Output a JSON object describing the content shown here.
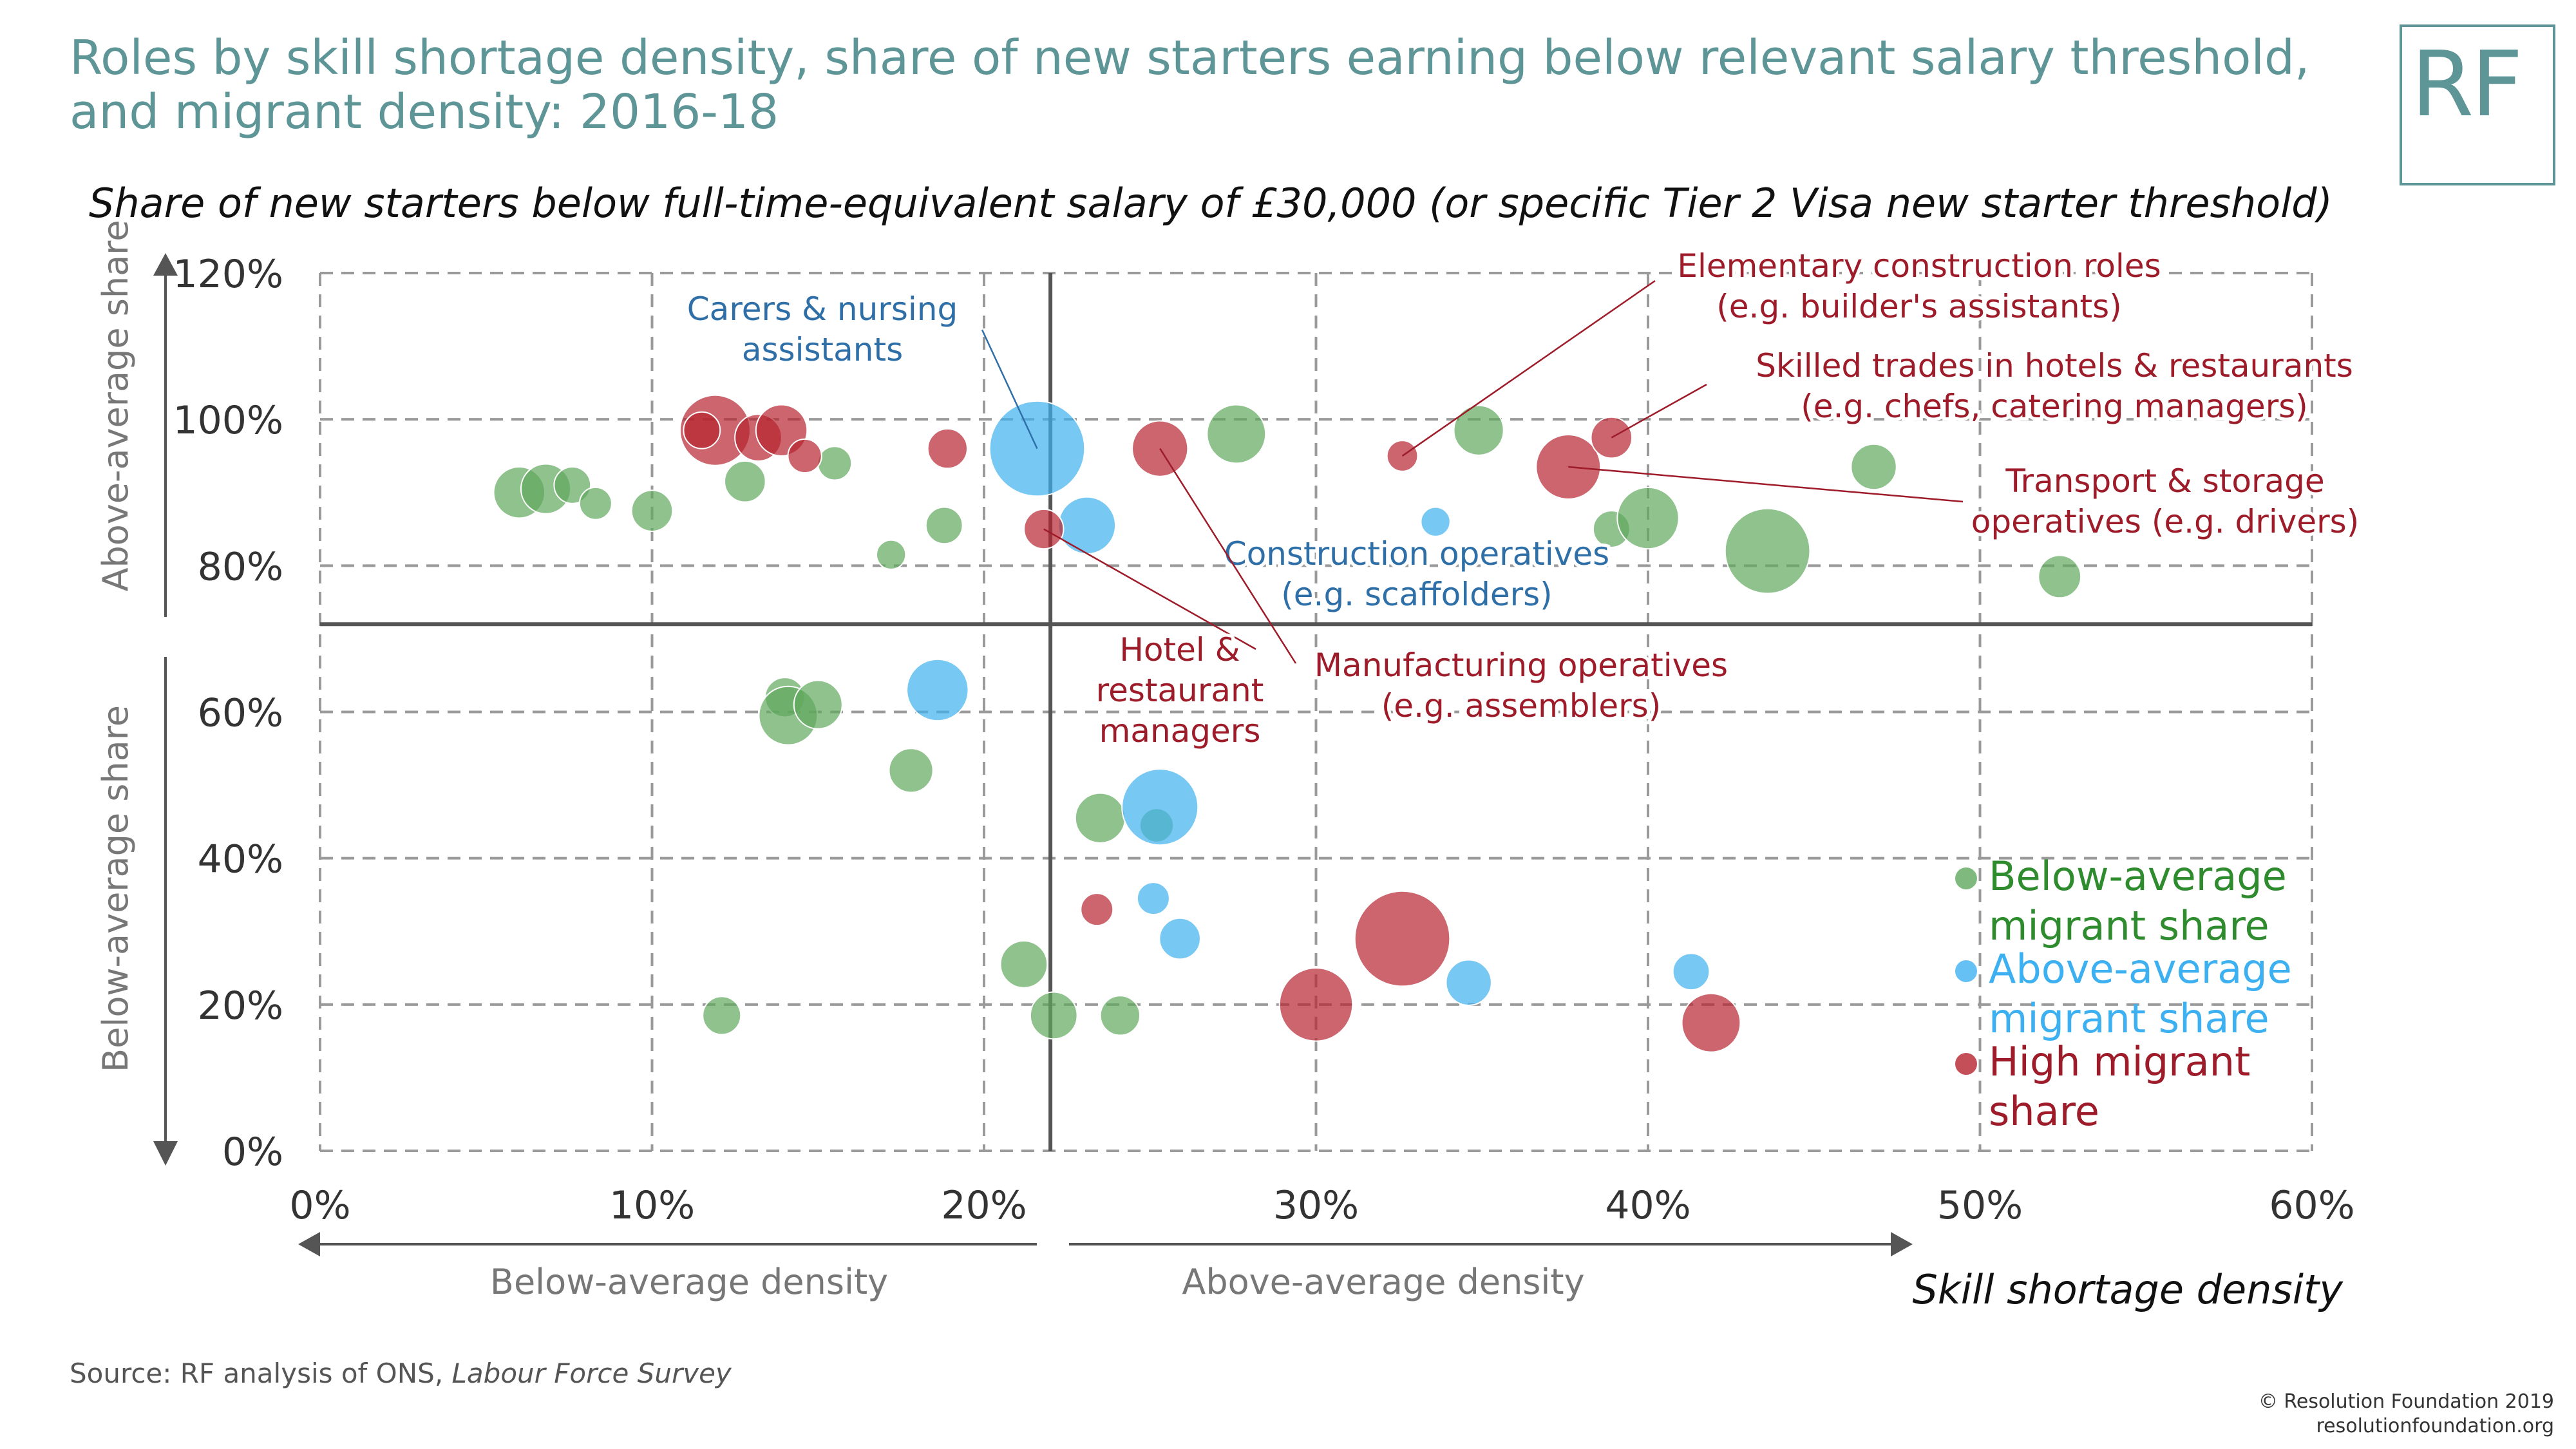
{
  "title": "Roles by skill shortage density, share of new starters earning below relevant salary threshold, and migrant density: 2016-18",
  "logo": "RF",
  "source": {
    "prefix": "Source: RF analysis of ONS, ",
    "italic": "Labour Force Survey"
  },
  "copyright": {
    "line1": "© Resolution Foundation 2019",
    "line2": "resolutionfoundation.org"
  },
  "colors": {
    "green": "#5fa85c",
    "blue": "#3fb0f0",
    "red": "#b7232f",
    "title": "#5e9597",
    "legend_green": "#2e8b2e",
    "legend_blue": "#3cb0f0",
    "legend_red": "#9e1c2a",
    "label_blue": "#2f6fa8",
    "label_red": "#9e1c2a"
  },
  "chart_data": {
    "type": "scatter",
    "subtitle": "Share of new starters below full-time-equivalent salary of £30,000 (or specific Tier 2 Visa new starter threshold)",
    "xlabel": "Skill shortage density",
    "xlim": [
      0,
      60
    ],
    "ylim": [
      0,
      120
    ],
    "x_ticks": [
      "0%",
      "10%",
      "20%",
      "30%",
      "40%",
      "50%",
      "60%"
    ],
    "y_ticks": [
      "0%",
      "20%",
      "40%",
      "60%",
      "80%",
      "100%",
      "120%"
    ],
    "x_average": 22,
    "y_average": 72,
    "y_arrow_labels": {
      "top": "Above-average share",
      "bottom": "Below-average share"
    },
    "x_arrow_labels": {
      "left": "Below-average density",
      "right": "Above-average density"
    },
    "grid": true,
    "legend_position": "bottom-right",
    "series": [
      {
        "name": "Below-average migrant share",
        "name_lines": [
          "Below-average",
          "migrant share"
        ],
        "color": "#5fa85c",
        "points": [
          [
            6,
            90,
            3.5
          ],
          [
            6.8,
            90.5,
            3.4
          ],
          [
            7.6,
            91,
            2.5
          ],
          [
            8.3,
            88.5,
            2.2
          ],
          [
            10,
            87.5,
            2.8
          ],
          [
            12.8,
            91.5,
            2.8
          ],
          [
            15.5,
            94,
            2.3
          ],
          [
            17.2,
            81.5,
            2
          ],
          [
            18.8,
            85.5,
            2.5
          ],
          [
            27.6,
            98,
            4
          ],
          [
            34.9,
            98.5,
            3.4
          ],
          [
            38.9,
            85,
            2.5
          ],
          [
            40,
            86.5,
            4.2
          ],
          [
            43.6,
            82,
            5.8
          ],
          [
            46.8,
            93.5,
            3.1
          ],
          [
            52.4,
            78.5,
            2.9
          ],
          [
            14,
            62,
            2.7
          ],
          [
            14.1,
            59.5,
            4
          ],
          [
            15,
            61,
            3.3
          ],
          [
            17.8,
            52,
            3
          ],
          [
            23.5,
            45.5,
            3.4
          ],
          [
            25.2,
            44.5,
            2.3
          ],
          [
            21.2,
            25.5,
            3.2
          ],
          [
            22.1,
            18.5,
            3.2
          ],
          [
            24.1,
            18.5,
            2.7
          ],
          [
            12.1,
            18.5,
            2.6
          ]
        ]
      },
      {
        "name": "Above-average migrant share",
        "name_lines": [
          "Above-average",
          "migrant share"
        ],
        "color": "#3fb0f0",
        "points": [
          [
            21.6,
            96,
            6.5
          ],
          [
            23.1,
            85.5,
            3.9
          ],
          [
            33.6,
            86,
            2
          ],
          [
            18.6,
            63,
            4.2
          ],
          [
            25.3,
            47,
            5.2
          ],
          [
            25.1,
            34.5,
            2.2
          ],
          [
            25.9,
            29,
            2.8
          ],
          [
            34.6,
            23,
            3.1
          ],
          [
            41.3,
            24.5,
            2.5
          ]
        ]
      },
      {
        "name": "High migrant share",
        "name_lines": [
          "High migrant",
          "share"
        ],
        "color": "#b7232f",
        "points": [
          [
            11.9,
            98.5,
            4.8
          ],
          [
            13.2,
            97.5,
            3.2
          ],
          [
            13.9,
            98.5,
            3.5
          ],
          [
            14.6,
            95,
            2.3
          ],
          [
            11.5,
            98.5,
            2.5
          ],
          [
            18.9,
            96,
            2.7
          ],
          [
            25.3,
            96,
            3.8
          ],
          [
            21.8,
            85,
            2.7
          ],
          [
            32.6,
            95,
            2.1
          ],
          [
            37.6,
            93.5,
            4.4
          ],
          [
            38.9,
            97.5,
            2.8
          ],
          [
            23.4,
            33,
            2.2
          ],
          [
            30,
            20,
            5
          ],
          [
            32.6,
            29,
            6.5
          ],
          [
            41.9,
            17.5,
            4
          ]
        ]
      }
    ],
    "annotations": [
      {
        "lines": [
          "Carers & nursing",
          "assistants"
        ],
        "color": "#2f6fa8",
        "point": [
          21.6,
          96
        ]
      },
      {
        "lines": [
          "Construction operatives",
          "(e.g. scaffolders)"
        ],
        "color": "#2f6fa8",
        "point": [
          23.1,
          85.5
        ]
      },
      {
        "lines": [
          "Elementary construction roles",
          "(e.g. builder's assistants)"
        ],
        "color": "#9e1c2a",
        "point": [
          32.6,
          95
        ]
      },
      {
        "lines": [
          "Skilled trades in hotels & restaurants",
          "(e.g. chefs, catering managers)"
        ],
        "color": "#9e1c2a",
        "point": [
          38.9,
          97.5
        ]
      },
      {
        "lines": [
          "Transport & storage",
          "operatives (e.g. drivers)"
        ],
        "color": "#9e1c2a",
        "point": [
          37.6,
          93.5
        ]
      },
      {
        "lines": [
          "Hotel &",
          "restaurant",
          "managers"
        ],
        "color": "#9e1c2a",
        "point": [
          21.8,
          85
        ]
      },
      {
        "lines": [
          "Manufacturing operatives",
          "(e.g. assemblers)"
        ],
        "color": "#9e1c2a",
        "point": [
          25.3,
          96
        ]
      }
    ]
  }
}
